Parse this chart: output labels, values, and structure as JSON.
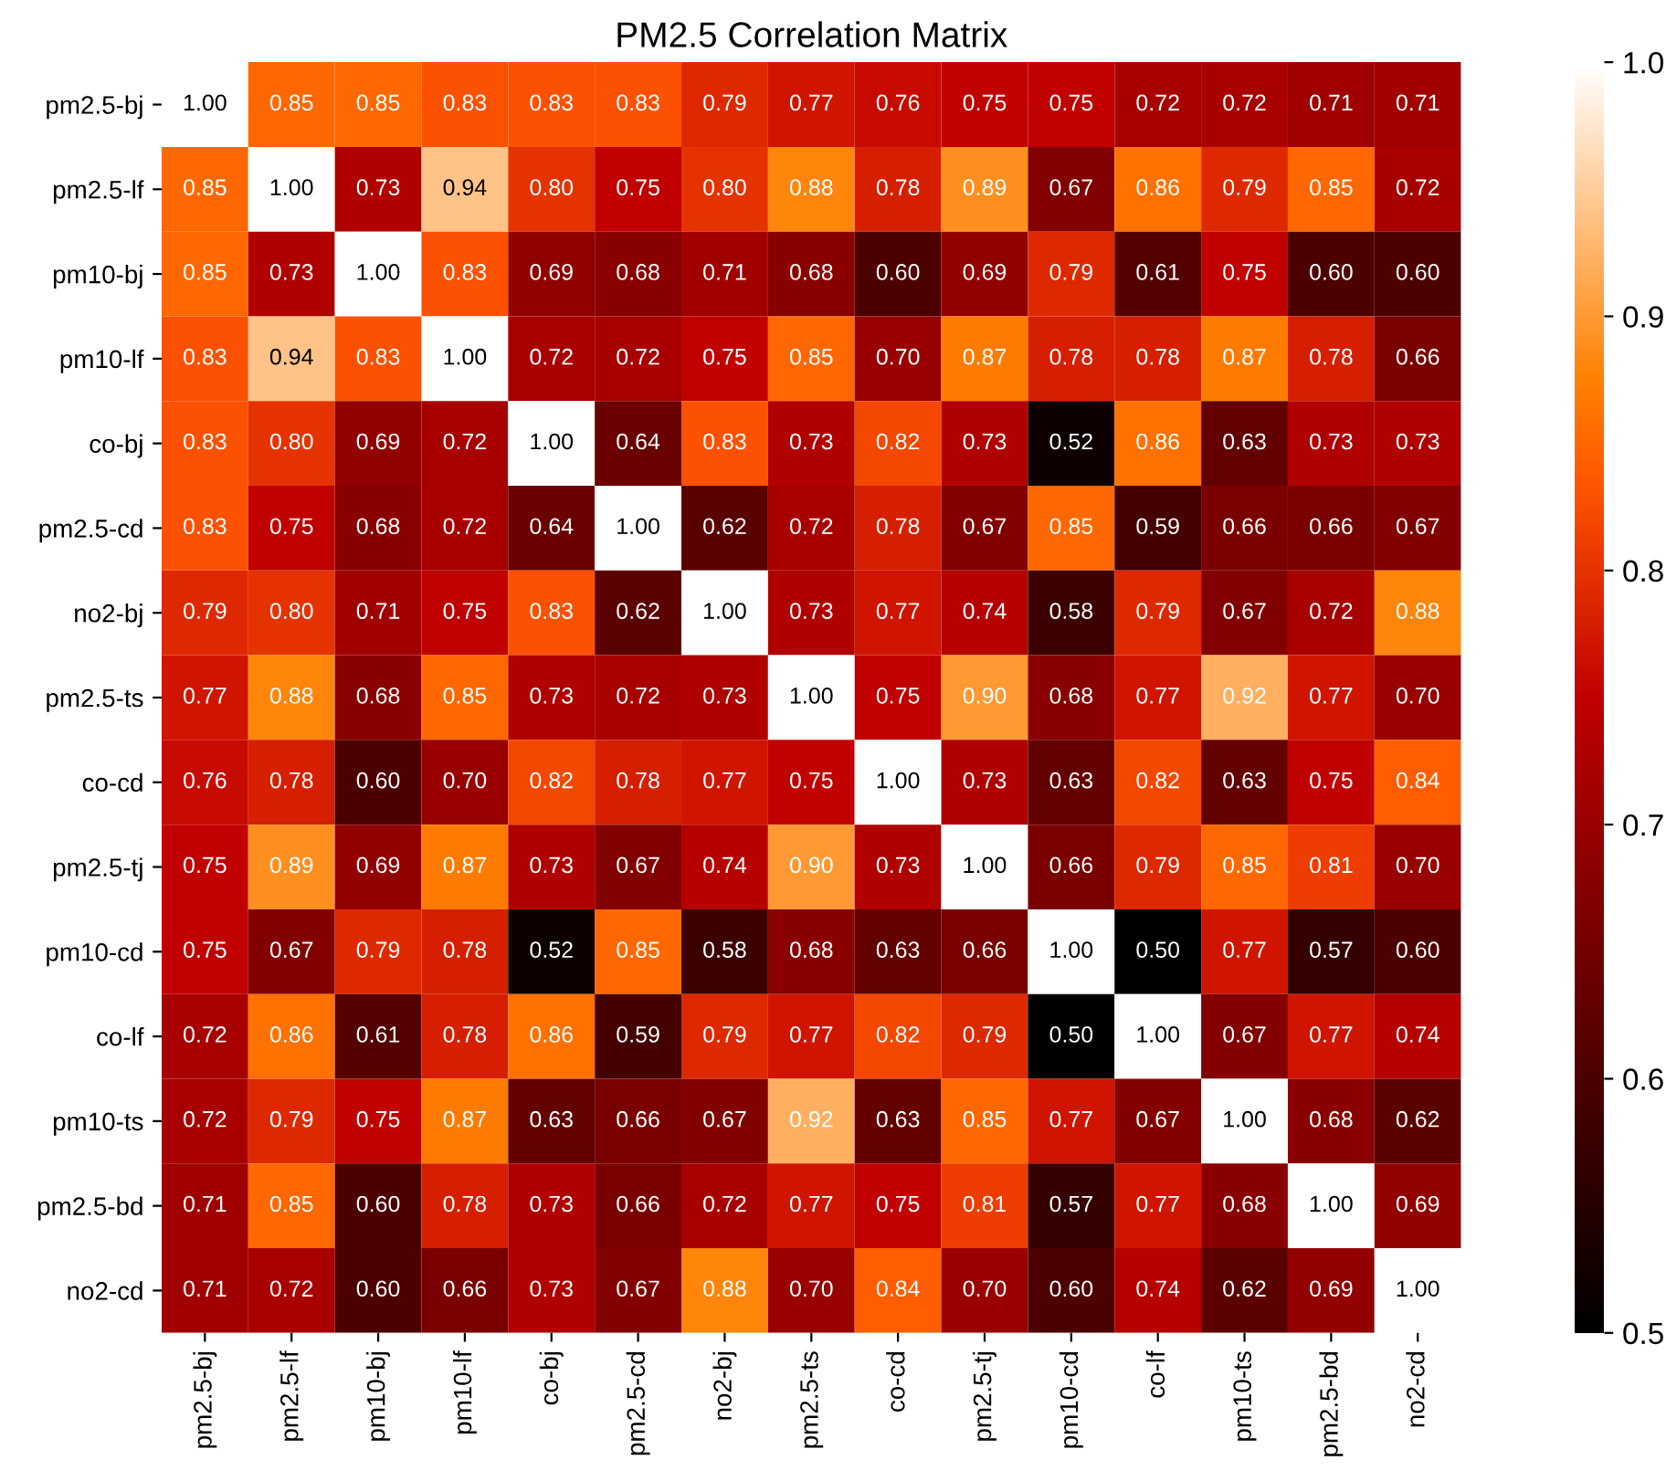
{
  "chart_data": {
    "type": "heatmap",
    "title": "PM2.5 Correlation Matrix",
    "categories": [
      "pm2.5-bj",
      "pm2.5-lf",
      "pm10-bj",
      "pm10-lf",
      "co-bj",
      "pm2.5-cd",
      "no2-bj",
      "pm2.5-ts",
      "co-cd",
      "pm2.5-tj",
      "pm10-cd",
      "co-lf",
      "pm10-ts",
      "pm2.5-bd",
      "no2-cd"
    ],
    "y_categories": [
      "pm2.5-bj",
      "pm2.5-lf",
      "pm10-bj",
      "pm10-lf",
      "co-bj",
      "pm2.5-cd",
      "no2-bj",
      "pm2.5-ts",
      "co-cd",
      "pm2.5-tj",
      "pm10-cd",
      "co-lf",
      "pm10-ts",
      "pm2.5-bd",
      "no2-cd"
    ],
    "cells": [
      [
        1.0,
        0.85,
        0.85,
        0.83,
        0.83,
        0.83,
        0.79,
        0.77,
        0.76,
        0.75,
        0.75,
        0.72,
        0.72,
        0.71,
        0.71
      ],
      [
        0.85,
        1.0,
        0.73,
        0.94,
        0.8,
        0.75,
        0.8,
        0.88,
        0.78,
        0.89,
        0.67,
        0.86,
        0.79,
        0.85,
        0.72
      ],
      [
        0.85,
        0.73,
        1.0,
        0.83,
        0.69,
        0.68,
        0.71,
        0.68,
        0.6,
        0.69,
        0.79,
        0.61,
        0.75,
        0.6,
        0.6
      ],
      [
        0.83,
        0.94,
        0.83,
        1.0,
        0.72,
        0.72,
        0.75,
        0.85,
        0.7,
        0.87,
        0.78,
        0.78,
        0.87,
        0.78,
        0.66
      ],
      [
        0.83,
        0.8,
        0.69,
        0.72,
        1.0,
        0.64,
        0.83,
        0.73,
        0.82,
        0.73,
        0.52,
        0.86,
        0.63,
        0.73,
        0.73
      ],
      [
        0.83,
        0.75,
        0.68,
        0.72,
        0.64,
        1.0,
        0.62,
        0.72,
        0.78,
        0.67,
        0.85,
        0.59,
        0.66,
        0.66,
        0.67
      ],
      [
        0.79,
        0.8,
        0.71,
        0.75,
        0.83,
        0.62,
        1.0,
        0.73,
        0.77,
        0.74,
        0.58,
        0.79,
        0.67,
        0.72,
        0.88
      ],
      [
        0.77,
        0.88,
        0.68,
        0.85,
        0.73,
        0.72,
        0.73,
        1.0,
        0.75,
        0.9,
        0.68,
        0.77,
        0.92,
        0.77,
        0.7
      ],
      [
        0.76,
        0.78,
        0.6,
        0.7,
        0.82,
        0.78,
        0.77,
        0.75,
        1.0,
        0.73,
        0.63,
        0.82,
        0.63,
        0.75,
        0.84
      ],
      [
        0.75,
        0.89,
        0.69,
        0.87,
        0.73,
        0.67,
        0.74,
        0.9,
        0.73,
        1.0,
        0.66,
        0.79,
        0.85,
        0.81,
        0.7
      ],
      [
        0.75,
        0.67,
        0.79,
        0.78,
        0.52,
        0.85,
        0.58,
        0.68,
        0.63,
        0.66,
        1.0,
        0.5,
        0.77,
        0.57,
        0.6
      ],
      [
        0.72,
        0.86,
        0.61,
        0.78,
        0.86,
        0.59,
        0.79,
        0.77,
        0.82,
        0.79,
        0.5,
        1.0,
        0.67,
        0.77,
        0.74
      ],
      [
        0.72,
        0.79,
        0.75,
        0.87,
        0.63,
        0.66,
        0.67,
        0.92,
        0.63,
        0.85,
        0.77,
        0.67,
        1.0,
        0.68,
        0.62
      ],
      [
        0.71,
        0.85,
        0.6,
        0.78,
        0.73,
        0.66,
        0.72,
        0.77,
        0.75,
        0.81,
        0.57,
        0.77,
        0.68,
        1.0,
        0.69
      ],
      [
        0.71,
        0.72,
        0.6,
        0.66,
        0.73,
        0.67,
        0.88,
        0.7,
        0.84,
        0.7,
        0.6,
        0.74,
        0.62,
        0.69,
        1.0
      ]
    ],
    "cell_labels": [
      [
        "1.00",
        "0.85",
        "0.85",
        "0.83",
        "0.83",
        "0.83",
        "0.79",
        "0.77",
        "0.76",
        "0.75",
        "0.75",
        "0.72",
        "0.72",
        "0.71",
        "0.71"
      ],
      [
        "0.85",
        "1.00",
        "0.73",
        "0.94",
        "0.80",
        "0.75",
        "0.80",
        "0.88",
        "0.78",
        "0.89",
        "0.67",
        "0.86",
        "0.79",
        "0.85",
        "0.72"
      ],
      [
        "0.85",
        "0.73",
        "1.00",
        "0.83",
        "0.69",
        "0.68",
        "0.71",
        "0.68",
        "0.60",
        "0.69",
        "0.79",
        "0.61",
        "0.75",
        "0.60",
        "0.60"
      ],
      [
        "0.83",
        "0.94",
        "0.83",
        "1.00",
        "0.72",
        "0.72",
        "0.75",
        "0.85",
        "0.70",
        "0.87",
        "0.78",
        "0.78",
        "0.87",
        "0.78",
        "0.66"
      ],
      [
        "0.83",
        "0.80",
        "0.69",
        "0.72",
        "1.00",
        "0.64",
        "0.83",
        "0.73",
        "0.82",
        "0.73",
        "0.52",
        "0.86",
        "0.63",
        "0.73",
        "0.73"
      ],
      [
        "0.83",
        "0.75",
        "0.68",
        "0.72",
        "0.64",
        "1.00",
        "0.62",
        "0.72",
        "0.78",
        "0.67",
        "0.85",
        "0.59",
        "0.66",
        "0.66",
        "0.67"
      ],
      [
        "0.79",
        "0.80",
        "0.71",
        "0.75",
        "0.83",
        "0.62",
        "1.00",
        "0.73",
        "0.77",
        "0.74",
        "0.58",
        "0.79",
        "0.67",
        "0.72",
        "0.88"
      ],
      [
        "0.77",
        "0.88",
        "0.68",
        "0.85",
        "0.73",
        "0.72",
        "0.73",
        "1.00",
        "0.75",
        "0.90",
        "0.68",
        "0.77",
        "0.92",
        "0.77",
        "0.70"
      ],
      [
        "0.76",
        "0.78",
        "0.60",
        "0.70",
        "0.82",
        "0.78",
        "0.77",
        "0.75",
        "1.00",
        "0.73",
        "0.63",
        "0.82",
        "0.63",
        "0.75",
        "0.84"
      ],
      [
        "0.75",
        "0.89",
        "0.69",
        "0.87",
        "0.73",
        "0.67",
        "0.74",
        "0.90",
        "0.73",
        "1.00",
        "0.66",
        "0.79",
        "0.85",
        "0.81",
        "0.70"
      ],
      [
        "0.75",
        "0.67",
        "0.79",
        "0.78",
        "0.52",
        "0.85",
        "0.58",
        "0.68",
        "0.63",
        "0.66",
        "1.00",
        "0.50",
        "0.77",
        "0.57",
        "0.60"
      ],
      [
        "0.72",
        "0.86",
        "0.61",
        "0.78",
        "0.86",
        "0.59",
        "0.79",
        "0.77",
        "0.82",
        "0.79",
        "0.50",
        "1.00",
        "0.67",
        "0.77",
        "0.74"
      ],
      [
        "0.72",
        "0.79",
        "0.75",
        "0.87",
        "0.63",
        "0.66",
        "0.67",
        "0.92",
        "0.63",
        "0.85",
        "0.77",
        "0.67",
        "1.00",
        "0.68",
        "0.62"
      ],
      [
        "0.71",
        "0.85",
        "0.60",
        "0.78",
        "0.73",
        "0.66",
        "0.72",
        "0.77",
        "0.75",
        "0.81",
        "0.57",
        "0.77",
        "0.68",
        "1.00",
        "0.69"
      ],
      [
        "0.71",
        "0.72",
        "0.60",
        "0.66",
        "0.73",
        "0.67",
        "0.88",
        "0.70",
        "0.84",
        "0.70",
        "0.60",
        "0.74",
        "0.62",
        "0.69",
        "1.00"
      ]
    ],
    "clim": [
      0.5,
      1.0
    ],
    "cticks": [
      {
        "value": 0.5,
        "label": "0.5"
      },
      {
        "value": 0.6,
        "label": "0.6"
      },
      {
        "value": 0.7,
        "label": "0.7"
      },
      {
        "value": 0.8,
        "label": "0.8"
      },
      {
        "value": 0.9,
        "label": "0.9"
      },
      {
        "value": 1.0,
        "label": "1.0"
      }
    ],
    "data_labels": true
  }
}
